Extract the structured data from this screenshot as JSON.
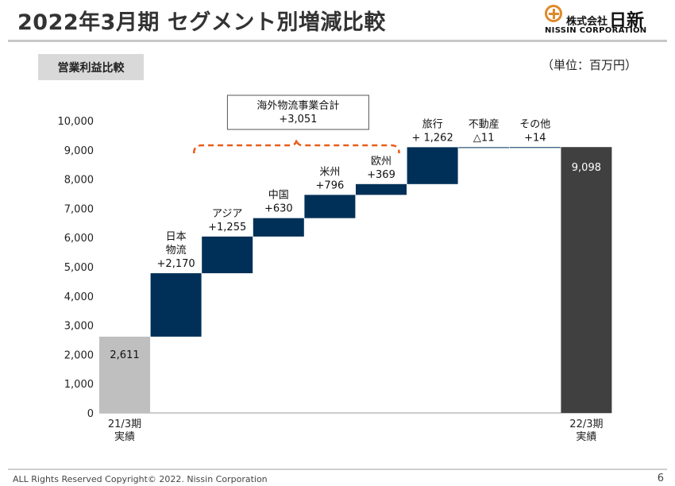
{
  "header": {
    "title": "2022年3月期 セグメント別増減比較",
    "logo_jp_small": "株式会社",
    "logo_jp_big": "日新",
    "logo_en": "NISSIN CORPORATION"
  },
  "section_tab": "営業利益比較",
  "unit_label": "（単位：百万円）",
  "footer": {
    "copyright": "ALL Rights Reserved Copyright©  2022.  Nissin Corporation",
    "page_number": "6"
  },
  "colors": {
    "start_bar": "#bfbfbf",
    "step_bar": "#003057",
    "end_bar": "#404040",
    "bracket": "#e85c1a"
  },
  "chart_data": {
    "type": "bar",
    "subtype": "waterfall",
    "ylim": [
      0,
      10000
    ],
    "yticks": [
      0,
      1000,
      2000,
      3000,
      4000,
      5000,
      6000,
      7000,
      8000,
      9000,
      10000
    ],
    "ytick_labels": [
      "0",
      "1,000",
      "2,000",
      "3,000",
      "4,000",
      "5,000",
      "6,000",
      "7,000",
      "8,000",
      "9,000",
      "10,000"
    ],
    "x_labels": [
      [
        "21/3期",
        "実績"
      ],
      [],
      [],
      [],
      [],
      [],
      [],
      [],
      [],
      [
        "22/3期",
        "実績"
      ]
    ],
    "bars": [
      {
        "kind": "total",
        "start": 0,
        "end": 2611,
        "label_lines": [
          "2,611"
        ],
        "label_inside": true
      },
      {
        "kind": "delta",
        "start": 2611,
        "end": 4781,
        "label_lines": [
          "日本",
          "物流",
          "+2,170"
        ]
      },
      {
        "kind": "delta",
        "start": 4781,
        "end": 6036,
        "label_lines": [
          "アジア",
          "+1,255"
        ]
      },
      {
        "kind": "delta",
        "start": 6036,
        "end": 6666,
        "label_lines": [
          "中国",
          "+630"
        ]
      },
      {
        "kind": "delta",
        "start": 6666,
        "end": 7462,
        "label_lines": [
          "米州",
          "+796"
        ]
      },
      {
        "kind": "delta",
        "start": 7462,
        "end": 7831,
        "label_lines": [
          "欧州",
          "+369"
        ]
      },
      {
        "kind": "delta",
        "start": 7831,
        "end": 9093,
        "label_lines": [
          "旅行",
          "+ 1,262"
        ]
      },
      {
        "kind": "delta",
        "start": 9093,
        "end": 9082,
        "label_lines": [
          "不動産",
          "△11"
        ]
      },
      {
        "kind": "delta",
        "start": 9082,
        "end": 9096,
        "label_lines": [
          "その他",
          "+14"
        ]
      },
      {
        "kind": "total",
        "start": 0,
        "end": 9098,
        "label_lines": [
          "9,098"
        ],
        "label_inside": true
      }
    ],
    "annotation": {
      "lines": [
        "海外物流事業合計",
        "+3,051"
      ],
      "span": [
        2,
        5
      ]
    }
  }
}
